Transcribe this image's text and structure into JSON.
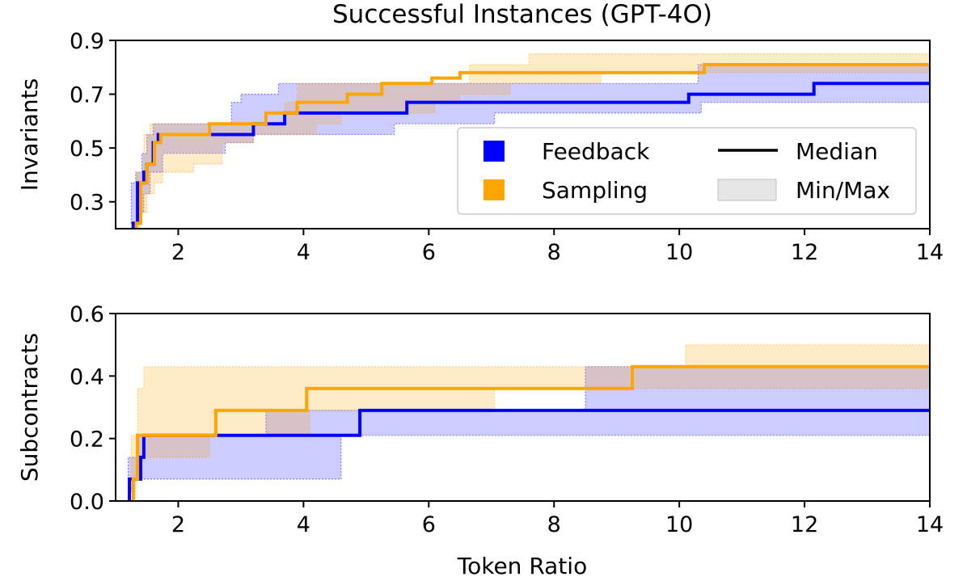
{
  "colors": {
    "feedback": "#0000ff",
    "sampling": "#ffa500",
    "band_feedback": "#b3b3ff",
    "band_sampling": "#ffe4b2",
    "minmax": "#d9d9d9"
  },
  "chart_data": {
    "title": "Successful Instances (GPT-4O)",
    "xlabel": "Token Ratio",
    "legend": {
      "location": "center-right",
      "items": [
        "Feedback",
        "Sampling",
        "Median",
        "Min/Max"
      ]
    },
    "panels": [
      {
        "id": "invariants",
        "type": "line",
        "ylabel": "Invariants",
        "xlim": [
          1,
          14
        ],
        "ylim": [
          0.2,
          0.9
        ],
        "xticks": [
          2,
          4,
          6,
          8,
          10,
          12,
          14
        ],
        "xtick_labels": [
          "2",
          "4",
          "6",
          "8",
          "10",
          "12",
          "14"
        ],
        "yticks": [
          0.3,
          0.5,
          0.7,
          0.9
        ],
        "ytick_labels": [
          "0.3",
          "0.5",
          "0.7",
          "0.9"
        ],
        "series": [
          {
            "name": "Feedback",
            "color_key": "feedback",
            "median": [
              [
                1.28,
                0.2
              ],
              [
                1.28,
                0.22
              ],
              [
                1.35,
                0.22
              ],
              [
                1.35,
                0.37
              ],
              [
                1.45,
                0.37
              ],
              [
                1.45,
                0.41
              ],
              [
                1.5,
                0.41
              ],
              [
                1.5,
                0.44
              ],
              [
                1.6,
                0.44
              ],
              [
                1.6,
                0.52
              ],
              [
                1.68,
                0.52
              ],
              [
                1.68,
                0.55
              ],
              [
                3.2,
                0.55
              ],
              [
                3.2,
                0.59
              ],
              [
                3.7,
                0.59
              ],
              [
                3.7,
                0.63
              ],
              [
                5.65,
                0.63
              ],
              [
                5.65,
                0.67
              ],
              [
                10.15,
                0.67
              ],
              [
                10.15,
                0.7
              ],
              [
                12.15,
                0.7
              ],
              [
                12.15,
                0.74
              ],
              [
                14,
                0.74
              ]
            ],
            "max": [
              [
                1.25,
                0.22
              ],
              [
                1.25,
                0.37
              ],
              [
                1.32,
                0.37
              ],
              [
                1.32,
                0.41
              ],
              [
                1.42,
                0.41
              ],
              [
                1.42,
                0.48
              ],
              [
                1.5,
                0.48
              ],
              [
                1.5,
                0.55
              ],
              [
                1.6,
                0.55
              ],
              [
                1.6,
                0.59
              ],
              [
                2.85,
                0.59
              ],
              [
                2.85,
                0.67
              ],
              [
                3.0,
                0.67
              ],
              [
                3.0,
                0.7
              ],
              [
                3.6,
                0.7
              ],
              [
                3.6,
                0.74
              ],
              [
                10.3,
                0.74
              ],
              [
                10.3,
                0.81
              ],
              [
                14,
                0.81
              ]
            ],
            "min": [
              [
                1.33,
                0.2
              ],
              [
                1.33,
                0.26
              ],
              [
                1.45,
                0.26
              ],
              [
                1.45,
                0.33
              ],
              [
                1.55,
                0.33
              ],
              [
                1.55,
                0.41
              ],
              [
                1.75,
                0.41
              ],
              [
                1.75,
                0.48
              ],
              [
                2.75,
                0.48
              ],
              [
                2.75,
                0.52
              ],
              [
                3.2,
                0.52
              ],
              [
                3.2,
                0.55
              ],
              [
                5.45,
                0.55
              ],
              [
                5.45,
                0.59
              ],
              [
                7.05,
                0.59
              ],
              [
                7.05,
                0.63
              ],
              [
                10.35,
                0.63
              ],
              [
                10.35,
                0.67
              ],
              [
                14,
                0.67
              ]
            ]
          },
          {
            "name": "Sampling",
            "color_key": "sampling",
            "median": [
              [
                1.33,
                0.2
              ],
              [
                1.33,
                0.22
              ],
              [
                1.4,
                0.22
              ],
              [
                1.4,
                0.37
              ],
              [
                1.5,
                0.37
              ],
              [
                1.5,
                0.44
              ],
              [
                1.62,
                0.44
              ],
              [
                1.62,
                0.52
              ],
              [
                1.72,
                0.52
              ],
              [
                1.72,
                0.55
              ],
              [
                2.5,
                0.55
              ],
              [
                2.5,
                0.59
              ],
              [
                3.4,
                0.59
              ],
              [
                3.4,
                0.63
              ],
              [
                3.9,
                0.63
              ],
              [
                3.9,
                0.67
              ],
              [
                4.7,
                0.67
              ],
              [
                4.7,
                0.7
              ],
              [
                5.25,
                0.7
              ],
              [
                5.25,
                0.74
              ],
              [
                6.05,
                0.74
              ],
              [
                6.05,
                0.76
              ],
              [
                6.5,
                0.76
              ],
              [
                6.5,
                0.78
              ],
              [
                10.4,
                0.78
              ],
              [
                10.4,
                0.81
              ],
              [
                14,
                0.81
              ]
            ],
            "max": [
              [
                1.33,
                0.26
              ],
              [
                1.33,
                0.41
              ],
              [
                1.45,
                0.41
              ],
              [
                1.45,
                0.55
              ],
              [
                1.55,
                0.55
              ],
              [
                1.55,
                0.59
              ],
              [
                3.7,
                0.59
              ],
              [
                3.7,
                0.67
              ],
              [
                3.9,
                0.67
              ],
              [
                3.9,
                0.74
              ],
              [
                6.65,
                0.74
              ],
              [
                6.65,
                0.81
              ],
              [
                7.6,
                0.81
              ],
              [
                7.6,
                0.85
              ],
              [
                14,
                0.85
              ]
            ],
            "min": [
              [
                1.38,
                0.2
              ],
              [
                1.38,
                0.26
              ],
              [
                1.5,
                0.26
              ],
              [
                1.5,
                0.33
              ],
              [
                1.62,
                0.33
              ],
              [
                1.62,
                0.37
              ],
              [
                1.75,
                0.37
              ],
              [
                1.75,
                0.41
              ],
              [
                2.25,
                0.41
              ],
              [
                2.25,
                0.44
              ],
              [
                2.7,
                0.44
              ],
              [
                2.7,
                0.52
              ],
              [
                3.2,
                0.52
              ],
              [
                3.2,
                0.55
              ],
              [
                4.2,
                0.55
              ],
              [
                4.2,
                0.59
              ],
              [
                4.6,
                0.59
              ],
              [
                4.6,
                0.63
              ],
              [
                6.1,
                0.63
              ],
              [
                6.1,
                0.67
              ],
              [
                6.5,
                0.67
              ],
              [
                6.5,
                0.7
              ],
              [
                7.3,
                0.7
              ],
              [
                7.3,
                0.74
              ],
              [
                8.75,
                0.74
              ],
              [
                8.75,
                0.78
              ],
              [
                14,
                0.78
              ]
            ]
          }
        ]
      },
      {
        "id": "subcontracts",
        "type": "line",
        "ylabel": "Subcontracts",
        "xlim": [
          1,
          14
        ],
        "ylim": [
          0,
          0.6
        ],
        "xticks": [
          2,
          4,
          6,
          8,
          10,
          12,
          14
        ],
        "xtick_labels": [
          "2",
          "4",
          "6",
          "8",
          "10",
          "12",
          "14"
        ],
        "yticks": [
          0.0,
          0.2,
          0.4,
          0.6
        ],
        "ytick_labels": [
          "0.0",
          "0.2",
          "0.4",
          "0.6"
        ],
        "series": [
          {
            "name": "Feedback",
            "color_key": "feedback",
            "median": [
              [
                1.22,
                0.0
              ],
              [
                1.22,
                0.07
              ],
              [
                1.4,
                0.07
              ],
              [
                1.4,
                0.14
              ],
              [
                1.45,
                0.14
              ],
              [
                1.45,
                0.21
              ],
              [
                4.9,
                0.21
              ],
              [
                4.9,
                0.29
              ],
              [
                14,
                0.29
              ]
            ],
            "max": [
              [
                1.2,
                0.07
              ],
              [
                1.2,
                0.14
              ],
              [
                1.35,
                0.14
              ],
              [
                1.35,
                0.21
              ],
              [
                3.4,
                0.21
              ],
              [
                3.4,
                0.29
              ],
              [
                8.5,
                0.29
              ],
              [
                8.5,
                0.43
              ],
              [
                14,
                0.43
              ]
            ],
            "min": [
              [
                1.3,
                0.0
              ],
              [
                1.3,
                0.07
              ],
              [
                4.6,
                0.07
              ],
              [
                4.6,
                0.21
              ],
              [
                14,
                0.21
              ]
            ]
          },
          {
            "name": "Sampling",
            "color_key": "sampling",
            "median": [
              [
                1.28,
                0.0
              ],
              [
                1.28,
                0.07
              ],
              [
                1.35,
                0.07
              ],
              [
                1.35,
                0.21
              ],
              [
                2.6,
                0.21
              ],
              [
                2.6,
                0.29
              ],
              [
                4.05,
                0.29
              ],
              [
                4.05,
                0.36
              ],
              [
                9.25,
                0.36
              ],
              [
                9.25,
                0.43
              ],
              [
                14,
                0.43
              ]
            ],
            "max": [
              [
                1.25,
                0.07
              ],
              [
                1.25,
                0.21
              ],
              [
                1.35,
                0.21
              ],
              [
                1.35,
                0.36
              ],
              [
                1.45,
                0.36
              ],
              [
                1.45,
                0.43
              ],
              [
                10.1,
                0.43
              ],
              [
                10.1,
                0.5
              ],
              [
                14,
                0.5
              ]
            ],
            "min": [
              [
                1.32,
                0.0
              ],
              [
                1.32,
                0.14
              ],
              [
                2.5,
                0.14
              ],
              [
                2.5,
                0.21
              ],
              [
                4.1,
                0.21
              ],
              [
                4.1,
                0.29
              ],
              [
                7.05,
                0.29
              ],
              [
                7.05,
                0.36
              ],
              [
                14,
                0.36
              ]
            ]
          }
        ]
      }
    ]
  }
}
